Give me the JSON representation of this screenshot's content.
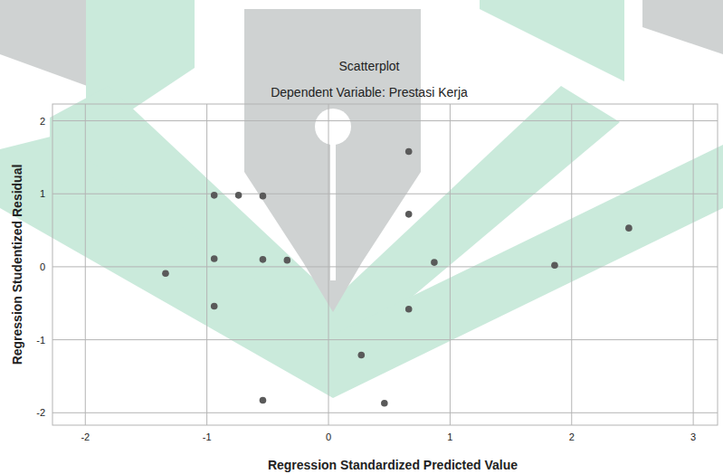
{
  "chart_data": {
    "type": "scatter",
    "title": "Scatterplot",
    "subtitle": "Dependent Variable: Prestasi Kerja",
    "x_label": "Regression Standardized Predicted Value",
    "y_label": "Regression Studentized Residual",
    "x": [
      -1.34,
      -0.94,
      -0.74,
      -0.54,
      -0.94,
      -0.54,
      -0.34,
      -0.94,
      -0.54,
      0.66,
      0.66,
      0.87,
      0.66,
      0.27,
      0.46,
      1.86,
      2.47
    ],
    "values": [
      -0.09,
      0.98,
      0.98,
      0.97,
      0.11,
      0.1,
      0.09,
      -0.54,
      -1.83,
      1.58,
      0.72,
      0.06,
      -0.58,
      -1.21,
      -1.87,
      0.02,
      0.53
    ],
    "color": "#5a5a5a",
    "marker": "circle",
    "xlim": [
      -2.27,
      3.2
    ],
    "xticks": [
      -2,
      -1,
      0,
      1,
      2,
      3
    ],
    "ylim": [
      -2.17,
      2.23
    ],
    "yticks": [
      -2,
      -1,
      0,
      1,
      2
    ],
    "grid": true
  }
}
